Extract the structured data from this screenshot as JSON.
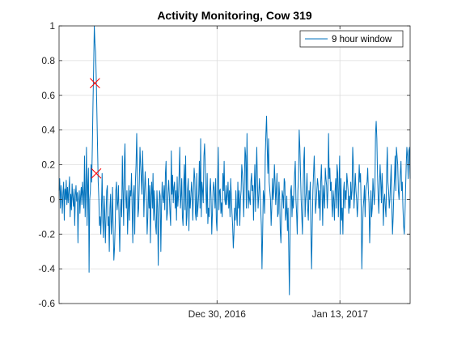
{
  "chart_data": {
    "type": "line",
    "title": "Activity Monitoring, Cow 319",
    "xlabel": "",
    "ylabel": "",
    "ylim": [
      -0.6,
      1
    ],
    "xlim": [
      "2016-12-12",
      "2017-01-21"
    ],
    "x_tick_labels": [
      {
        "date": "2016-12-30",
        "label": "Dec 30, 2016"
      },
      {
        "date": "2017-01-13",
        "label": "Jan 13, 2017"
      }
    ],
    "y_ticks": [
      -0.6,
      -0.4,
      -0.2,
      0,
      0.2,
      0.4,
      0.6,
      0.8,
      1
    ],
    "y_tick_labels": [
      "-0.6",
      "-0.4",
      "-0.2",
      "0",
      "0.2",
      "0.4",
      "0.6",
      "0.8",
      "1"
    ],
    "grid": true,
    "legend": {
      "location": "top-right",
      "entries": [
        "9  hour window"
      ]
    },
    "series": [
      {
        "name": "9  hour window",
        "color": "#0072BD",
        "y_values": [
          0.05,
          0.12,
          -0.05,
          0.08,
          0.02,
          -0.08,
          0.04,
          0.1,
          -0.12,
          0.06,
          0.0,
          0.11,
          -0.03,
          0.07,
          -0.02,
          0.05,
          0.13,
          -0.1,
          0.03,
          -0.06,
          0.09,
          0.01,
          -0.04,
          0.06,
          -0.15,
          0.02,
          0.08,
          -0.01,
          0.04,
          -0.25,
          0.0,
          0.05,
          -0.08,
          0.02,
          0.07,
          -0.03,
          0.1,
          0.03,
          -0.05,
          0.25,
          -0.1,
          0.05,
          0.3,
          -0.15,
          0.08,
          0.18,
          -0.42,
          0.0,
          0.05,
          0.2,
          0.1,
          0.3,
          0.55,
          0.75,
          1.0,
          0.9,
          0.85,
          0.7,
          0.5,
          0.3,
          0.1,
          0.0,
          -0.15,
          -0.1,
          -0.2,
          -0.05,
          0.15,
          -0.12,
          -0.22,
          0.02,
          -0.08,
          -0.25,
          -0.1,
          0.05,
          0.08,
          -0.15,
          -0.1,
          -0.3,
          -0.05,
          0.03,
          -0.2,
          -0.12,
          0.07,
          -0.18,
          -0.35,
          -0.28,
          -0.15,
          0.05,
          0.1,
          -0.06,
          -0.02,
          0.08,
          -0.12,
          -0.3,
          -0.08,
          0.0,
          -0.1,
          0.25,
          0.05,
          -0.15,
          0.2,
          0.32,
          0.03,
          -0.05,
          0.05,
          -0.2,
          -0.05,
          0.08,
          -0.12,
          0.05,
          0.02,
          0.15,
          -0.05,
          -0.25,
          0.03,
          0.08,
          -0.2,
          0.1,
          0.2,
          0.38,
          0.15,
          -0.1,
          -0.05,
          0.1,
          0.3,
          0.2,
          0.12,
          0.03,
          0.28,
          0.13,
          -0.1,
          0.05,
          0.16,
          0.05,
          -0.02,
          -0.2,
          -0.1,
          0.12,
          -0.05,
          0.08,
          -0.25,
          0.02,
          0.1,
          -0.05,
          0.15,
          -0.12,
          0.05,
          -0.08,
          -0.15,
          -0.2,
          0.05,
          -0.05,
          -0.38,
          -0.1,
          0.05,
          0.02,
          -0.3,
          -0.05,
          0.1,
          0.02,
          -0.02,
          0.08,
          -0.06,
          0.15,
          0.22,
          -0.12,
          -0.08,
          0.04,
          0.11,
          0.02,
          -0.08,
          -0.15,
          0.28,
          0.03,
          0.14,
          -0.02,
          0.07,
          0.1,
          -0.05,
          0.05,
          -0.12,
          0.13,
          -0.04,
          0.02,
          0.15,
          0.3,
          -0.05,
          0.02,
          0.12,
          -0.1,
          -0.15,
          0.08,
          0.2,
          -0.06,
          0.25,
          -0.15,
          -0.1,
          0.06,
          0.12,
          -0.18,
          0.05,
          -0.05,
          0.02,
          0.1,
          0.03,
          -0.12,
          0.06,
          0.18,
          0.12,
          -0.08,
          -0.12,
          0.15,
          -0.1,
          -0.04,
          0.03,
          0.22,
          -0.05,
          0.35,
          -0.1,
          0.1,
          0.05,
          -0.02,
          0.25,
          0.32,
          0.2,
          0.05,
          -0.08,
          0.15,
          -0.14,
          -0.05,
          -0.1,
          0.05,
          0.12,
          0.0,
          -0.2,
          -0.08,
          0.05,
          0.1,
          0.05,
          -0.05,
          0.12,
          -0.12,
          -0.18,
          0.08,
          0.3,
          -0.06,
          0.05,
          0.06,
          -0.08,
          -0.02,
          -0.1,
          0.15,
          0.05,
          0.22,
          0.0,
          -0.03,
          0.08,
          -0.03,
          0.03,
          0.1,
          -0.05,
          0.05,
          -0.1,
          0.12,
          0.02,
          -0.08,
          -0.15,
          -0.28,
          -0.2,
          -0.05,
          -0.12,
          0.05,
          -0.08,
          -0.15,
          0.1,
          -0.05,
          0.05,
          -0.15,
          0.0,
          0.05,
          0.2,
          0.15,
          0.05,
          -0.1,
          0.1,
          0.3,
          0.25,
          -0.05,
          0.38,
          0.1,
          -0.05,
          0.05,
          0.0,
          -0.03,
          0.1,
          0.15,
          0.05,
          0.08,
          -0.12,
          0.05,
          0.2,
          -0.07,
          0.14,
          0.3,
          0.1,
          -0.05,
          0.02,
          0.12,
          0.05,
          -0.05,
          -0.15,
          -0.4,
          -0.2,
          0.05,
          0.02,
          -0.08,
          0.25,
          0.38,
          0.48,
          0.3,
          0.15,
          0.35,
          0.1,
          0.05,
          0.0,
          -0.15,
          -0.05,
          0.12,
          0.0,
          0.05,
          0.2,
          0.1,
          -0.03,
          0.05,
          0.15,
          -0.1,
          -0.08,
          0.1,
          0.02,
          -0.18,
          -0.25,
          -0.1,
          0.05,
          0.02,
          -0.05,
          0.12,
          0.1,
          -0.12,
          -0.08,
          0.02,
          -0.18,
          -0.05,
          -0.3,
          -0.55,
          -0.2,
          0.05,
          0.08,
          -0.1,
          0.02,
          -0.05,
          0.05,
          0.15,
          0.22,
          0.0,
          -0.08,
          -0.2,
          0.05,
          0.12,
          0.4,
          0.3,
          0.15,
          0.0,
          -0.1,
          -0.2,
          0.05,
          0.22,
          0.3,
          -0.1,
          0.0,
          0.05,
          0.15,
          -0.05,
          -0.12,
          0.05,
          0.0,
          0.1,
          -0.2,
          -0.4,
          -0.15,
          0.05,
          0.15,
          0.25,
          0.1,
          -0.08,
          -0.02,
          0.05,
          0.12,
          0.08,
          -0.05,
          0.05,
          -0.12,
          0.1,
          0.2,
          0.05,
          -0.15,
          0.08,
          0.02,
          -0.05,
          0.18,
          0.12,
          0.08,
          -0.05,
          0.05,
          0.38,
          0.12,
          0.18,
          0.05,
          0.1,
          -0.02,
          -0.1,
          0.05,
          0.0,
          -0.12,
          0.05,
          0.12,
          -0.05,
          0.2,
          0.15,
          -0.1,
          0.08,
          0.25,
          -0.2,
          0.12,
          -0.12,
          -0.05,
          -0.2,
          0.05,
          0.1,
          -0.05,
          0.05,
          0.0,
          0.15,
          0.1,
          0.05,
          -0.08,
          0.02,
          -0.05,
          0.1,
          0.0,
          0.05,
          0.3,
          0.2,
          -0.05,
          0.05,
          0.15,
          0.05,
          0.0,
          -0.1,
          -0.03,
          0.08,
          0.2,
          0.1,
          0.15,
          -0.05,
          -0.4,
          -0.2,
          -0.05,
          0.0,
          0.08,
          -0.1,
          0.05,
          0.08,
          0.1,
          0.18,
          0.05,
          -0.02,
          -0.25,
          -0.1,
          0.05,
          -0.1,
          -0.05,
          0.12,
          0.05,
          -0.03,
          0.05,
          0.38,
          0.45,
          0.35,
          0.15,
          0.02,
          -0.08,
          0.08,
          0.2,
          0.1,
          -0.02,
          0.15,
          0.05,
          -0.15,
          0.0,
          0.03,
          -0.05,
          -0.1,
          0.15,
          0.3,
          0.1,
          0.05,
          -0.05,
          0.0,
          0.1,
          0.2,
          -0.05,
          -0.2,
          -0.1,
          0.03,
          0.12,
          0.25,
          0.05,
          0.3,
          0.25,
          0.2,
          0.05,
          0.0,
          0.08,
          0.15,
          0.22,
          0.05,
          0.1,
          -0.05,
          -0.15,
          -0.2,
          -0.1,
          0.05,
          0.2,
          0.3,
          0.25,
          0.12,
          0.28,
          0.3,
          0.12
        ]
      }
    ],
    "markers": [
      {
        "symbol": "x",
        "color": "#FF0000",
        "x_index": 55,
        "y": 0.67
      },
      {
        "symbol": "x",
        "color": "#FF0000",
        "x_index": 57,
        "y": 0.15
      }
    ]
  }
}
